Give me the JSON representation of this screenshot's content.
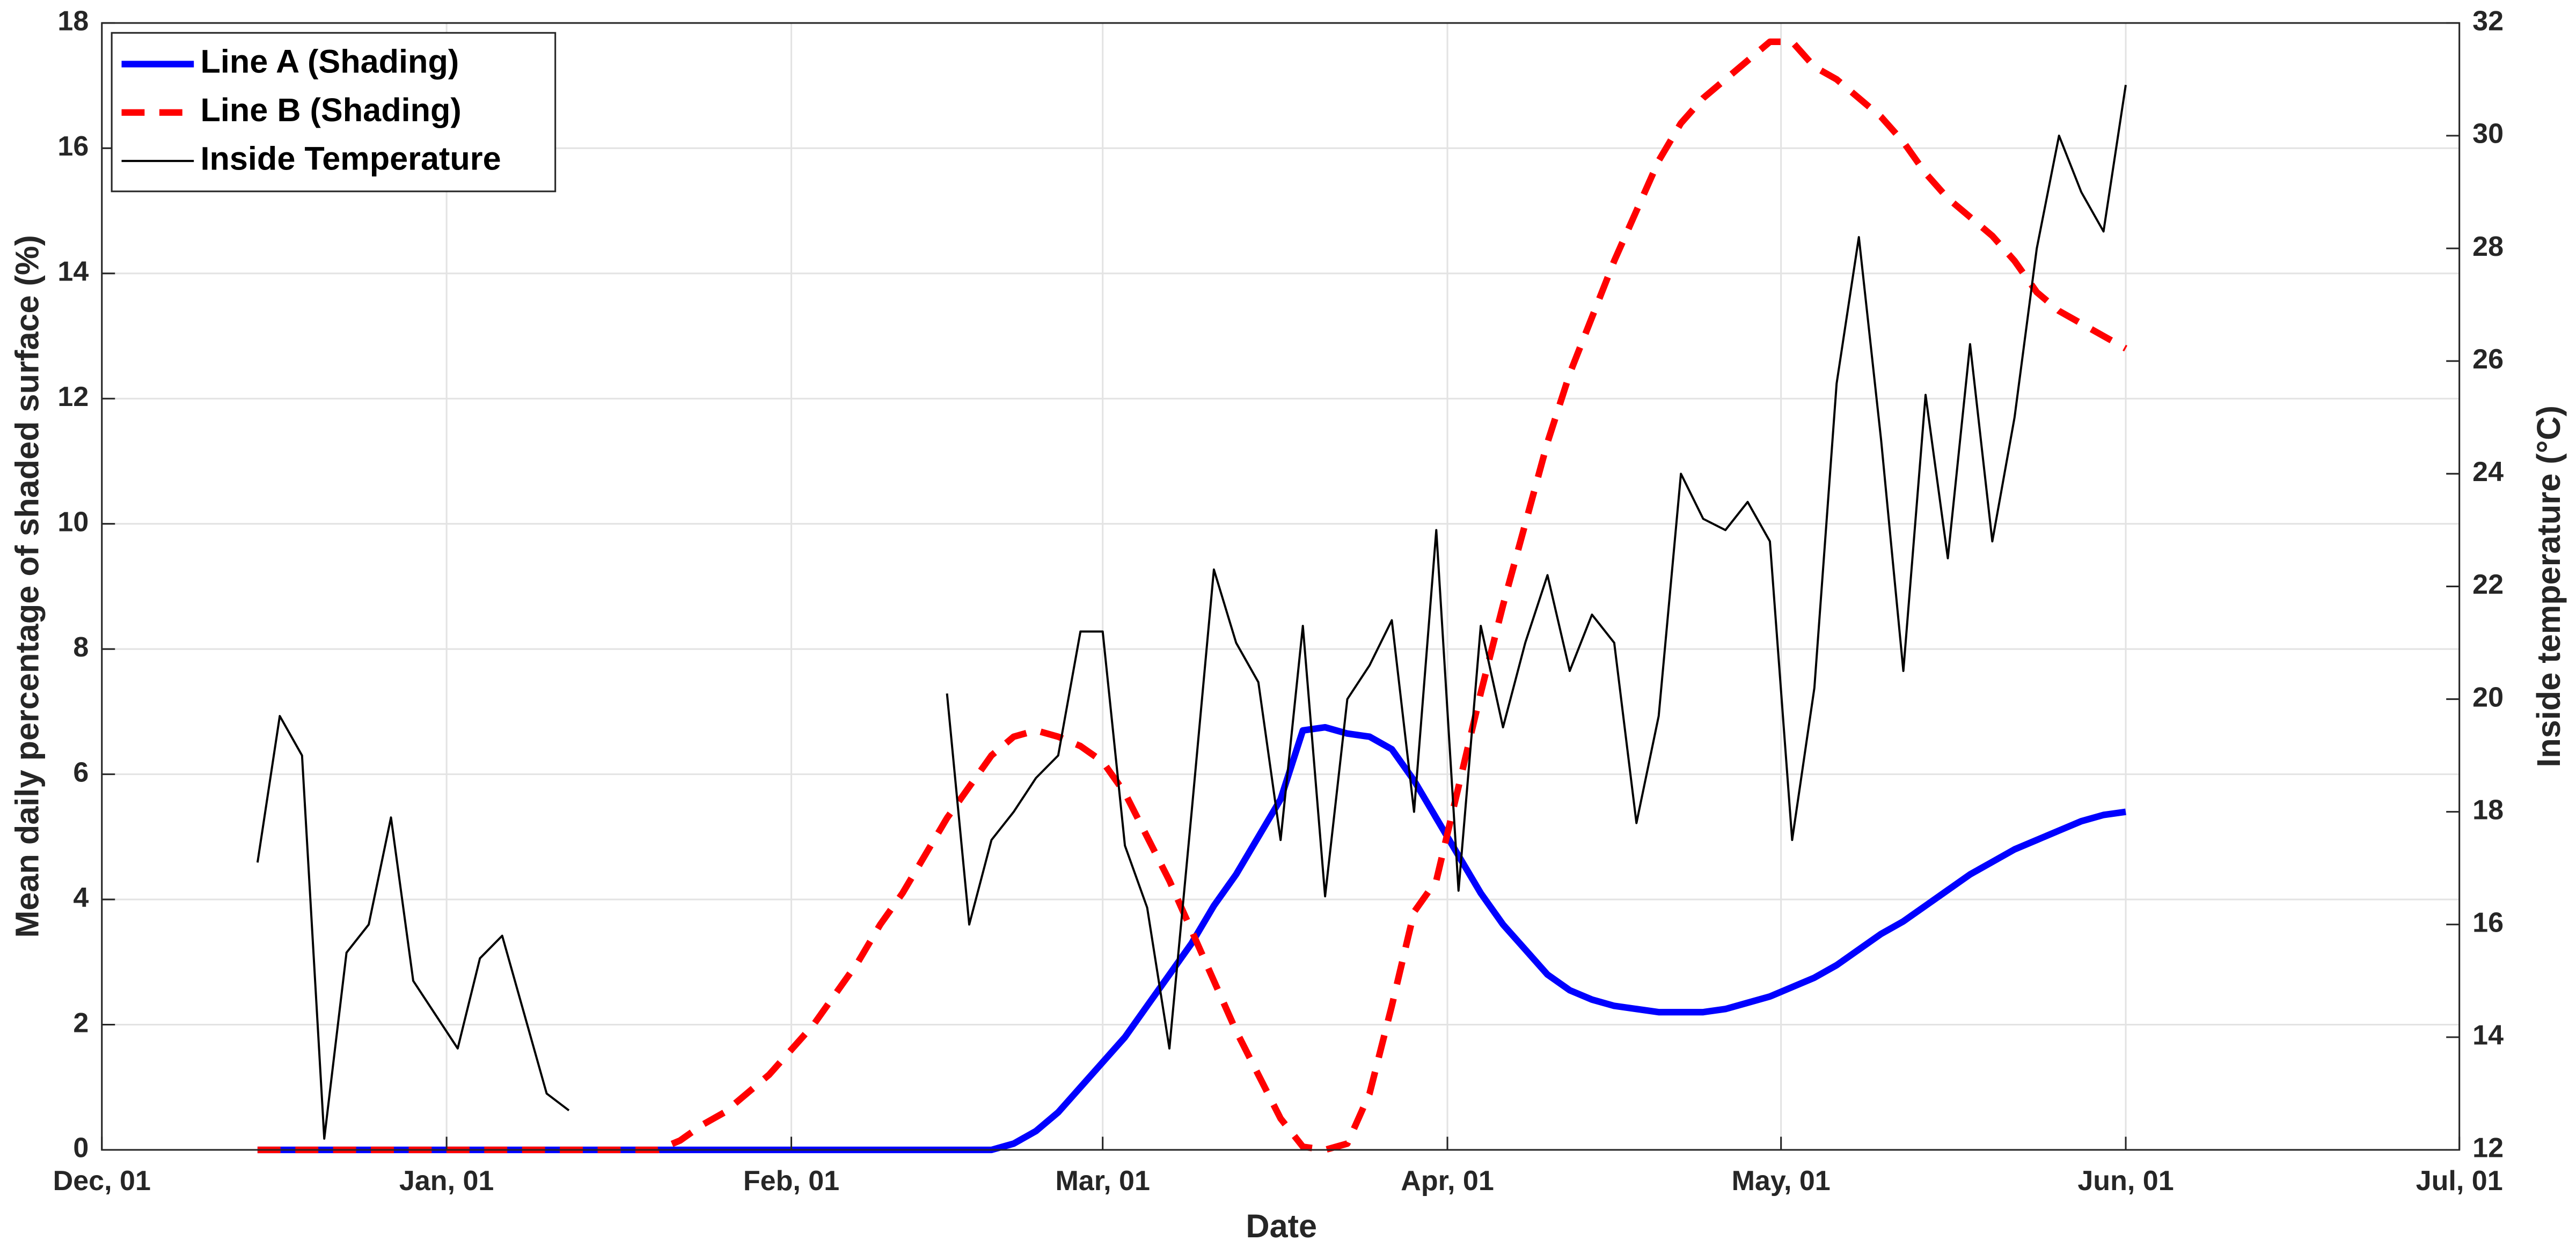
{
  "chart_data": {
    "type": "line",
    "x_label": "Date",
    "y_label": "Mean daily percentage of shaded surface (%)",
    "y2_label": "Inside temperature (°C)",
    "xlim": [
      0,
      212
    ],
    "xticks": [
      {
        "value": 0,
        "label": "Dec, 01"
      },
      {
        "value": 31,
        "label": "Jan, 01"
      },
      {
        "value": 62,
        "label": "Feb, 01"
      },
      {
        "value": 90,
        "label": "Mar, 01"
      },
      {
        "value": 121,
        "label": "Apr, 01"
      },
      {
        "value": 151,
        "label": "May, 01"
      },
      {
        "value": 182,
        "label": "Jun, 01"
      },
      {
        "value": 212,
        "label": "Jul, 01"
      }
    ],
    "ylim": [
      0,
      18
    ],
    "yticks": [
      0,
      2,
      4,
      6,
      8,
      10,
      12,
      14,
      16,
      18
    ],
    "y2lim": [
      12,
      32
    ],
    "y2ticks": [
      12,
      14,
      16,
      18,
      20,
      22,
      24,
      26,
      28,
      30,
      32
    ],
    "grid": true,
    "legend": "upper-left",
    "x": [
      14,
      16,
      18,
      20,
      22,
      24,
      26,
      28,
      30,
      32,
      34,
      36,
      38,
      40,
      42,
      44,
      46,
      48,
      50,
      52,
      54,
      56,
      58,
      60,
      62,
      64,
      66,
      68,
      70,
      72,
      74,
      76,
      78,
      80,
      82,
      84,
      86,
      88,
      90,
      92,
      94,
      96,
      98,
      100,
      102,
      104,
      106,
      108,
      110,
      112,
      114,
      116,
      118,
      120,
      122,
      124,
      126,
      128,
      130,
      132,
      134,
      136,
      138,
      140,
      142,
      144,
      146,
      148,
      150,
      152,
      154,
      156,
      158,
      160,
      162,
      164,
      166,
      168,
      170,
      172,
      174,
      176,
      178,
      180,
      182
    ],
    "series": [
      {
        "name": "Line A (Shading)",
        "color": "#0000ff",
        "style": "solid",
        "width": 4,
        "values": [
          0,
          0,
          0,
          0,
          0,
          0,
          0,
          0,
          0,
          0,
          0,
          0,
          0,
          0,
          0,
          0,
          0,
          0,
          0,
          0,
          0,
          0,
          0,
          0,
          0,
          0,
          0,
          0,
          0,
          0,
          0,
          0,
          0,
          0,
          0.1,
          0.3,
          0.6,
          1.0,
          1.4,
          1.8,
          2.3,
          2.8,
          3.3,
          3.9,
          4.4,
          5.0,
          5.6,
          6.7,
          6.75,
          6.65,
          6.6,
          6.4,
          5.9,
          5.3,
          4.7,
          4.1,
          3.6,
          3.2,
          2.8,
          2.55,
          2.4,
          2.3,
          2.25,
          2.2,
          2.2,
          2.2,
          2.25,
          2.35,
          2.45,
          2.6,
          2.75,
          2.95,
          3.2,
          3.45,
          3.65,
          3.9,
          4.15,
          4.4,
          4.6,
          4.8,
          4.95,
          5.1,
          5.25,
          5.35,
          5.4
        ]
      },
      {
        "name": "Line B (Shading)",
        "color": "#ff0000",
        "style": "dashed",
        "width": 4,
        "values": [
          0,
          0,
          0,
          0,
          0,
          0,
          0,
          0,
          0,
          0,
          0,
          0,
          0,
          0,
          0,
          0,
          0,
          0,
          0,
          0.15,
          0.4,
          0.6,
          0.9,
          1.2,
          1.6,
          2.0,
          2.5,
          3.0,
          3.6,
          4.1,
          4.7,
          5.3,
          5.8,
          6.3,
          6.6,
          6.7,
          6.6,
          6.45,
          6.2,
          5.7,
          5.0,
          4.3,
          3.5,
          2.7,
          1.9,
          1.2,
          0.5,
          0.05,
          0,
          0.1,
          0.9,
          2.3,
          3.8,
          4.3,
          5.8,
          7.3,
          8.7,
          10.0,
          11.3,
          12.4,
          13.3,
          14.2,
          15.0,
          15.8,
          16.4,
          16.8,
          17.1,
          17.4,
          17.7,
          17.7,
          17.3,
          17.1,
          16.8,
          16.5,
          16.1,
          15.6,
          15.2,
          14.9,
          14.6,
          14.2,
          13.7,
          13.4,
          13.2,
          13.0,
          12.8
        ]
      },
      {
        "name": "Inside Temperature",
        "color": "#000000",
        "style": "solid",
        "width": 1.3,
        "axis": "y2",
        "values": [
          17.1,
          19.7,
          19.0,
          12.2,
          15.5,
          16.0,
          17.9,
          15.0,
          14.4,
          13.8,
          15.4,
          15.8,
          14.4,
          13.0,
          12.7,
          null,
          null,
          null,
          null,
          null,
          null,
          null,
          null,
          null,
          null,
          null,
          null,
          null,
          null,
          null,
          null,
          20.1,
          16.0,
          17.5,
          18.0,
          18.6,
          19.0,
          21.2,
          21.2,
          17.4,
          16.3,
          13.8,
          18.0,
          22.3,
          21.0,
          20.3,
          17.5,
          21.3,
          16.5,
          20.0,
          20.6,
          21.4,
          18.0,
          23.0,
          16.6,
          21.3,
          19.5,
          21.0,
          22.2,
          20.5,
          21.5,
          21.0,
          17.8,
          19.7,
          24.0,
          23.2,
          23.0,
          23.5,
          22.8,
          17.5,
          20.2,
          25.6,
          28.2,
          24.6,
          20.5,
          25.4,
          22.5,
          26.3,
          22.8,
          25.0,
          28.0,
          30.0,
          29.0,
          28.3,
          30.9
        ]
      }
    ]
  }
}
